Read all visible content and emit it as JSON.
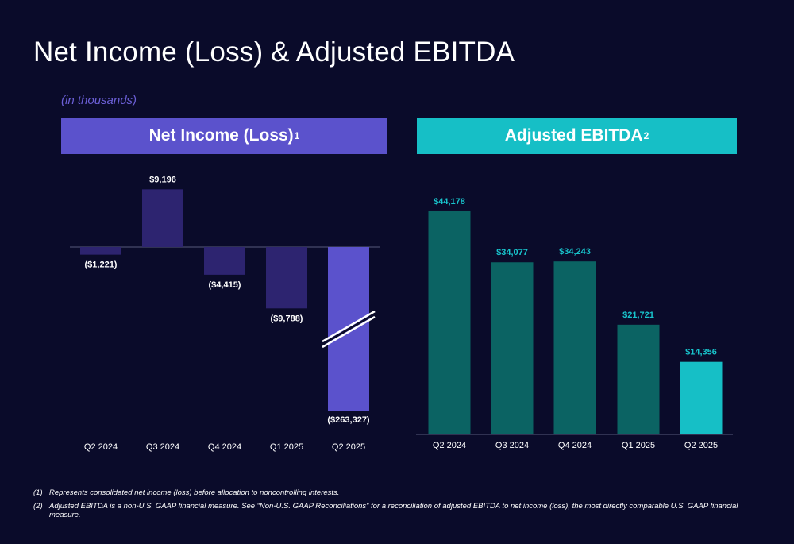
{
  "header": {
    "title": "Net Income (Loss) & Adjusted EBITDA",
    "units_note": "(in thousands)"
  },
  "panels": {
    "left_title": "Net Income (Loss)",
    "left_sup": "1",
    "right_title": "Adjusted EBITDA",
    "right_sup": "2"
  },
  "colors": {
    "net_income_bar": "#2d2470",
    "net_income_highlight": "#5b52cc",
    "ebitda_bar": "#0b6363",
    "ebitda_highlight": "#16bfc6",
    "ebitda_label": "#18c4cc",
    "axis": "#55587a"
  },
  "chart_data": [
    {
      "type": "bar",
      "title": "Net Income (Loss)",
      "categories": [
        "Q2 2024",
        "Q3 2024",
        "Q4 2024",
        "Q1 2025",
        "Q2 2025"
      ],
      "values": [
        -1221,
        9196,
        -4415,
        -9788,
        -263327
      ],
      "data_labels": [
        "($1,221)",
        "$9,196",
        "($4,415)",
        "($9,788)",
        "($263,327)"
      ],
      "axis_break": "Q2 2025",
      "highlight": "Q2 2025"
    },
    {
      "type": "bar",
      "title": "Adjusted EBITDA",
      "categories": [
        "Q2 2024",
        "Q3 2024",
        "Q4 2024",
        "Q1 2025",
        "Q2 2025"
      ],
      "values": [
        44178,
        34077,
        34243,
        21721,
        14356
      ],
      "data_labels": [
        "$44,178",
        "$34,077",
        "$34,243",
        "$21,721",
        "$14,356"
      ],
      "highlight": "Q2 2025"
    }
  ],
  "footnotes": [
    {
      "mark": "(1)",
      "text": "Represents consolidated net income (loss) before allocation to noncontrolling interests."
    },
    {
      "mark": "(2)",
      "text": "Adjusted EBITDA is a non-U.S. GAAP financial measure. See “Non-U.S. GAAP Reconciliations” for a reconciliation of adjusted EBITDA to net income (loss), the most directly comparable U.S. GAAP financial measure."
    }
  ]
}
